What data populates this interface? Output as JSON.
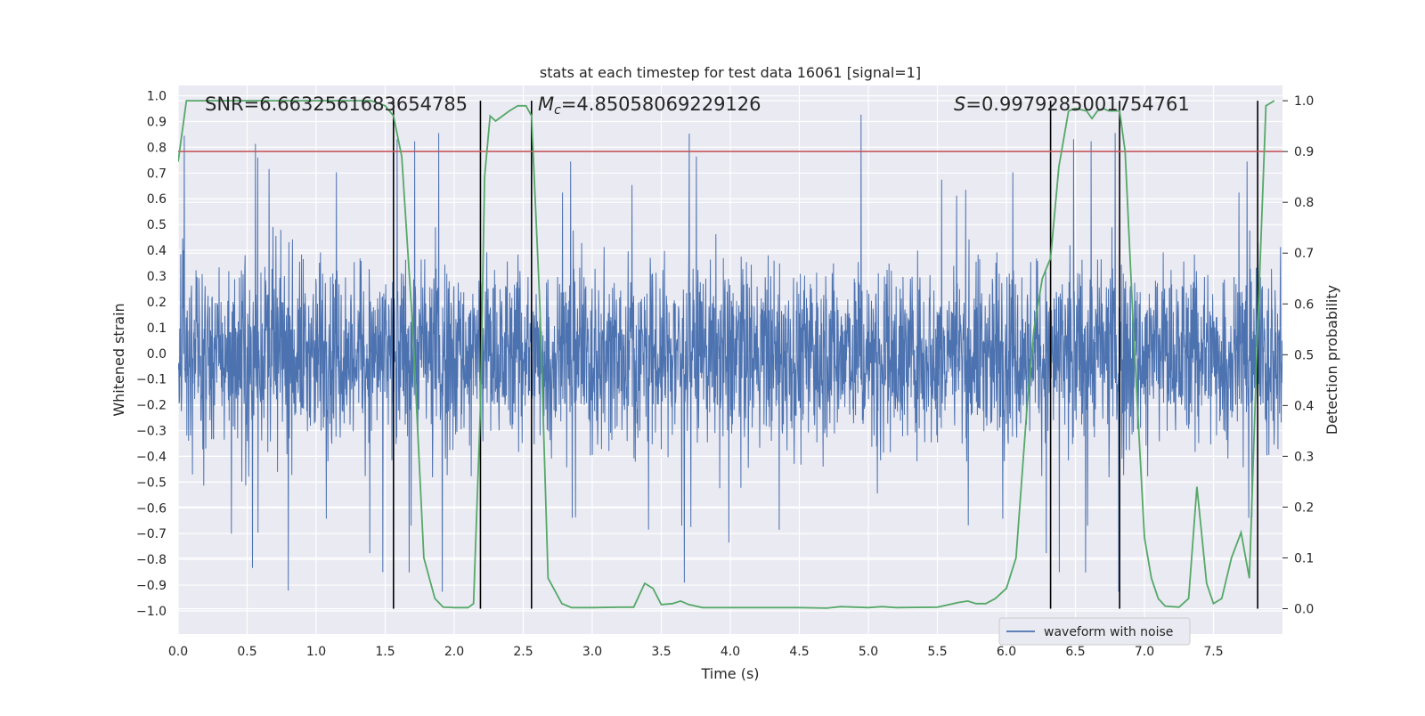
{
  "chart_data": {
    "type": "line",
    "title": "stats at each timestep for test data 16061 [signal=1]",
    "xlabel": "Time (s)",
    "ylabel_left": "Whitened strain",
    "ylabel_right": "Detection probability",
    "xlim": [
      0,
      8
    ],
    "ylim_left": [
      -1.09,
      1.04
    ],
    "ylim_right": [
      -0.05,
      1.03
    ],
    "x_ticks": [
      0.0,
      0.5,
      1.0,
      1.5,
      2.0,
      2.5,
      3.0,
      3.5,
      4.0,
      4.5,
      5.0,
      5.5,
      6.0,
      6.5,
      7.0,
      7.5
    ],
    "x_tick_labels": [
      "0.0",
      "0.5",
      "1.0",
      "1.5",
      "2.0",
      "2.5",
      "3.0",
      "3.5",
      "4.0",
      "4.5",
      "5.0",
      "5.5",
      "6.0",
      "6.5",
      "7.0",
      "7.5"
    ],
    "y_left_ticks": [
      1.0,
      0.9,
      0.8,
      0.7,
      0.6,
      0.5,
      0.4,
      0.3,
      0.2,
      0.1,
      0.0,
      -0.1,
      -0.2,
      -0.3,
      -0.4,
      -0.5,
      -0.6,
      -0.7,
      -0.8,
      -0.9,
      -1.0
    ],
    "y_left_tick_labels": [
      "1.0",
      "0.9",
      "0.8",
      "0.7",
      "0.6",
      "0.5",
      "0.4",
      "0.3",
      "0.2",
      "0.1",
      "0.0",
      "−0.1",
      "−0.2",
      "−0.3",
      "−0.4",
      "−0.5",
      "−0.6",
      "−0.7",
      "−0.8",
      "−0.9",
      "−1.0"
    ],
    "y_right_ticks": [
      1.0,
      0.9,
      0.8,
      0.7,
      0.6,
      0.5,
      0.4,
      0.3,
      0.2,
      0.1,
      0.0
    ],
    "y_right_tick_labels": [
      "1.0",
      "0.9",
      "0.8",
      "0.7",
      "0.6",
      "0.5",
      "0.4",
      "0.3",
      "0.2",
      "0.1",
      "0.0"
    ],
    "annotations": {
      "snr": "SNR=6.6632561683654785",
      "mc_symbol": "M",
      "mc_sub": "c",
      "mc_value": "=4.85058069229126",
      "s_symbol": "S",
      "s_value": "=0.9979285001754761"
    },
    "threshold": {
      "value": 0.9,
      "axis": "right",
      "color": "#c44e52"
    },
    "vertical_lines_x": [
      1.56,
      2.19,
      2.56,
      6.32,
      6.82,
      7.82
    ],
    "legend": {
      "label": "waveform with noise",
      "location": "lower right"
    },
    "series": [
      {
        "name": "waveform with noise",
        "axis": "left",
        "color": "#4c72b0",
        "description": "whitened noisy strain, amplitude envelope approx. 0.4-0.6 with peaks to ~1.0"
      },
      {
        "name": "Detection probability",
        "axis": "right",
        "color": "#55a868",
        "x": [
          0.0,
          0.06,
          0.5,
          1.0,
          1.4,
          1.5,
          1.56,
          1.62,
          1.7,
          1.78,
          1.86,
          1.92,
          2.0,
          2.1,
          2.14,
          2.19,
          2.22,
          2.26,
          2.3,
          2.4,
          2.46,
          2.52,
          2.56,
          2.62,
          2.68,
          2.78,
          2.85,
          3.0,
          3.2,
          3.3,
          3.38,
          3.44,
          3.5,
          3.58,
          3.64,
          3.7,
          3.8,
          4.0,
          4.5,
          4.7,
          4.8,
          5.0,
          5.1,
          5.2,
          5.5,
          5.65,
          5.72,
          5.78,
          5.85,
          5.92,
          6.0,
          6.07,
          6.15,
          6.2,
          6.26,
          6.32,
          6.38,
          6.45,
          6.5,
          6.58,
          6.62,
          6.66,
          6.7,
          6.74,
          6.82,
          6.86,
          6.92,
          7.0,
          7.05,
          7.1,
          7.15,
          7.25,
          7.32,
          7.38,
          7.45,
          7.5,
          7.56,
          7.63,
          7.7,
          7.76,
          7.82,
          7.88,
          7.94
        ],
        "values": [
          0.88,
          1.0,
          1.0,
          1.0,
          1.0,
          0.99,
          0.97,
          0.89,
          0.55,
          0.1,
          0.02,
          0.003,
          0.002,
          0.002,
          0.01,
          0.4,
          0.85,
          0.97,
          0.96,
          0.98,
          0.99,
          0.99,
          0.97,
          0.6,
          0.06,
          0.01,
          0.002,
          0.002,
          0.003,
          0.003,
          0.05,
          0.04,
          0.008,
          0.01,
          0.015,
          0.008,
          0.002,
          0.002,
          0.002,
          0.001,
          0.004,
          0.002,
          0.004,
          0.002,
          0.003,
          0.012,
          0.015,
          0.01,
          0.01,
          0.02,
          0.04,
          0.1,
          0.4,
          0.55,
          0.65,
          0.69,
          0.87,
          0.98,
          0.985,
          0.98,
          0.965,
          0.98,
          0.985,
          0.98,
          0.98,
          0.9,
          0.55,
          0.14,
          0.06,
          0.02,
          0.005,
          0.003,
          0.02,
          0.24,
          0.05,
          0.01,
          0.02,
          0.1,
          0.15,
          0.06,
          0.55,
          0.99,
          1.0
        ]
      }
    ]
  }
}
